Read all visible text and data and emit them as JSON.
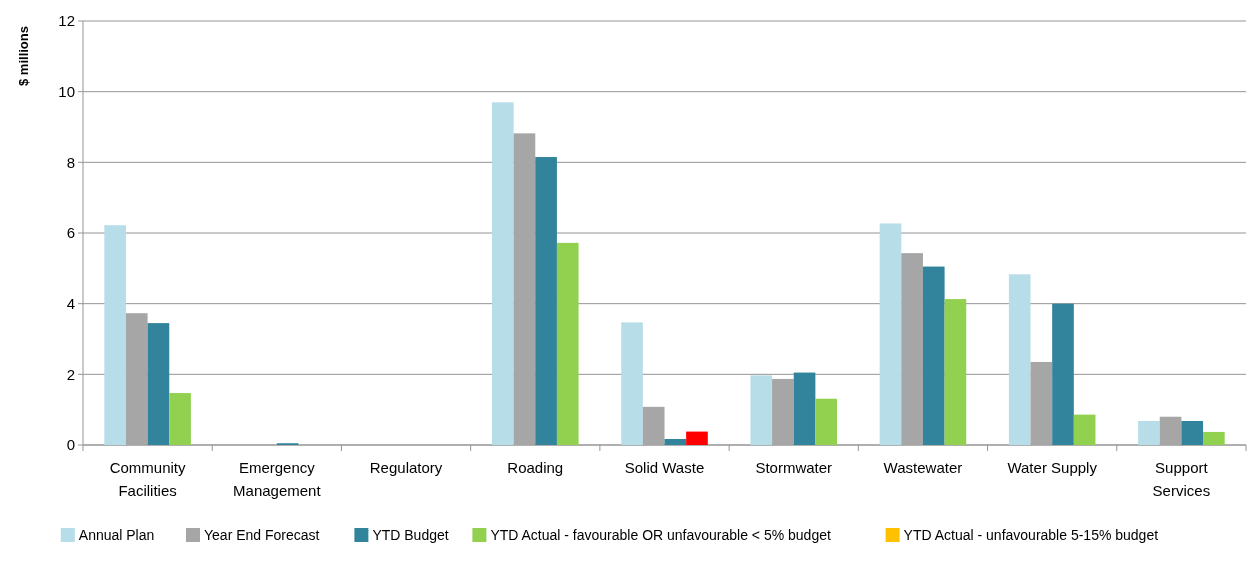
{
  "chart_data": {
    "type": "bar",
    "ylabel": "$ millions",
    "categories": [
      "Community Facilities",
      "Emergency Management",
      "Regulatory",
      "Roading",
      "Solid Waste",
      "Stormwater",
      "Wastewater",
      "Water Supply",
      "Support Services"
    ],
    "series": [
      {
        "name": "Annual Plan",
        "color": "#b7dde8",
        "values": [
          6.22,
          null,
          0,
          9.7,
          3.47,
          1.97,
          6.27,
          4.83,
          0.68
        ]
      },
      {
        "name": "Year End Forecast",
        "color": "#a6a6a6",
        "values": [
          3.73,
          null,
          0,
          8.82,
          1.08,
          1.87,
          5.43,
          2.35,
          0.8
        ]
      },
      {
        "name": "YTD Budget",
        "color": "#31849b",
        "values": [
          3.45,
          0.05,
          0,
          8.15,
          0.17,
          2.05,
          5.05,
          4.0,
          0.68
        ]
      },
      {
        "name": "YTD Actual - favourable OR unfavourable < 5% budget",
        "color": "#92d050",
        "colors": [
          "#92d050",
          "#92d050",
          "#92d050",
          "#92d050",
          "#ff0000",
          "#92d050",
          "#92d050",
          "#92d050",
          "#92d050"
        ],
        "values": [
          1.47,
          0,
          0,
          5.72,
          0.38,
          1.31,
          4.13,
          0.86,
          0.37
        ]
      },
      {
        "name": "YTD Actual - unfavourable 5-15% budget",
        "color": "#ffc000",
        "values": [
          null,
          null,
          null,
          null,
          null,
          null,
          null,
          null,
          null
        ]
      }
    ],
    "ylim": [
      0,
      12
    ],
    "yticks": [
      0,
      2,
      4,
      6,
      8,
      10,
      12
    ],
    "grid": "y",
    "legend": "bottom"
  }
}
